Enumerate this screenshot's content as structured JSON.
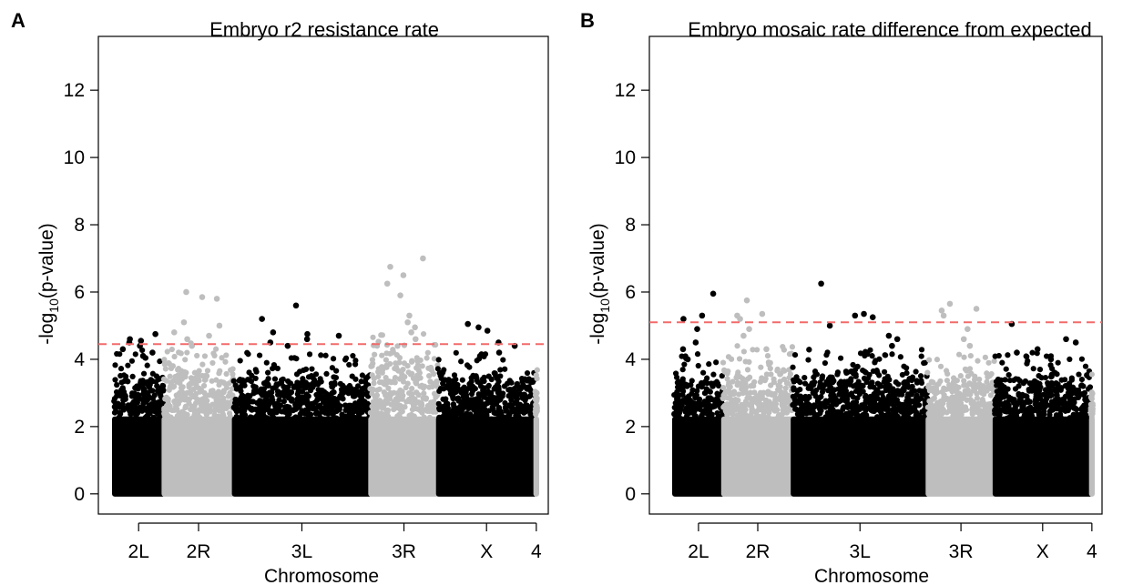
{
  "chart_data": [
    {
      "panel": "A",
      "type": "scatter",
      "title": "Embryo r2 resistance rate",
      "xlabel": "Chromosome",
      "ylabel_pre": "-log",
      "ylabel_sub": "10",
      "ylabel_post": "(p-value)",
      "ylim": [
        -0.6,
        13.6
      ],
      "yticks": [
        0,
        2,
        4,
        6,
        8,
        10,
        12
      ],
      "threshold": 4.45,
      "threshold_color": "#f26a6a",
      "grid": false,
      "legend": "none",
      "chromosomes": [
        {
          "name": "2L",
          "start": 0,
          "end": 0.117,
          "color": "#000000",
          "bulk_max": 3.3,
          "top_hits": [
            4.75,
            4.6,
            4.55,
            4.5,
            4.4,
            4.3,
            4.2,
            4.1
          ]
        },
        {
          "name": "2R",
          "start": 0.117,
          "end": 0.283,
          "color": "#bebebe",
          "bulk_max": 3.5,
          "top_hits": [
            6.0,
            5.85,
            5.8,
            5.1,
            5.0,
            4.8,
            4.7,
            4.6,
            4.4
          ]
        },
        {
          "name": "3L",
          "start": 0.283,
          "end": 0.605,
          "color": "#000000",
          "bulk_max": 3.2,
          "top_hits": [
            5.6,
            5.2,
            4.8,
            4.75,
            4.7,
            4.6,
            4.5,
            4.4
          ]
        },
        {
          "name": "3R",
          "start": 0.605,
          "end": 0.765,
          "color": "#bebebe",
          "bulk_max": 3.8,
          "top_hits": [
            7.0,
            6.75,
            6.5,
            6.25,
            5.9,
            5.3,
            5.1,
            4.95,
            4.8,
            4.6
          ]
        },
        {
          "name": "X",
          "start": 0.765,
          "end": 0.995,
          "color": "#000000",
          "bulk_max": 3.2,
          "top_hits": [
            5.05,
            4.95,
            4.85,
            4.5,
            4.4,
            4.2
          ]
        },
        {
          "name": "4",
          "start": 0.995,
          "end": 1.0,
          "color": "#bebebe",
          "bulk_max": 2.8,
          "top_hits": [
            3.0
          ]
        }
      ]
    },
    {
      "panel": "B",
      "type": "scatter",
      "title": "Embryo mosaic rate difference from expected",
      "xlabel": "Chromosome",
      "ylabel_pre": "-log",
      "ylabel_sub": "10",
      "ylabel_post": "(p-value)",
      "ylim": [
        -0.6,
        13.6
      ],
      "yticks": [
        0,
        2,
        4,
        6,
        8,
        10,
        12
      ],
      "threshold": 5.1,
      "threshold_color": "#f26a6a",
      "grid": false,
      "legend": "none",
      "chromosomes": [
        {
          "name": "2L",
          "start": 0,
          "end": 0.117,
          "color": "#000000",
          "bulk_max": 3.2,
          "top_hits": [
            5.95,
            5.3,
            5.2,
            4.9,
            4.5,
            4.3,
            4.0
          ]
        },
        {
          "name": "2R",
          "start": 0.117,
          "end": 0.283,
          "color": "#bebebe",
          "bulk_max": 3.4,
          "top_hits": [
            5.75,
            5.35,
            5.3,
            5.2,
            4.9,
            4.7,
            4.3
          ]
        },
        {
          "name": "3L",
          "start": 0.283,
          "end": 0.605,
          "color": "#000000",
          "bulk_max": 3.3,
          "top_hits": [
            6.25,
            5.35,
            5.3,
            5.25,
            5.0,
            4.7,
            4.6,
            4.4
          ]
        },
        {
          "name": "3R",
          "start": 0.605,
          "end": 0.765,
          "color": "#bebebe",
          "bulk_max": 3.2,
          "top_hits": [
            5.65,
            5.5,
            5.45,
            5.3,
            4.9,
            4.6,
            4.4
          ]
        },
        {
          "name": "X",
          "start": 0.765,
          "end": 0.995,
          "color": "#000000",
          "bulk_max": 3.2,
          "top_hits": [
            5.05,
            4.6,
            4.5,
            4.3,
            4.2,
            4.0
          ]
        },
        {
          "name": "4",
          "start": 0.995,
          "end": 1.0,
          "color": "#bebebe",
          "bulk_max": 2.6,
          "top_hits": [
            2.9
          ]
        }
      ]
    }
  ]
}
